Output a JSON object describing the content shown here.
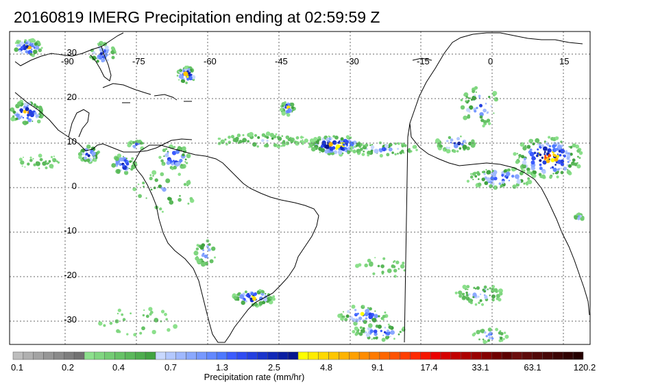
{
  "title": "20160819 IMERG Precipitation ending at 02:59:59 Z",
  "map": {
    "lon_labels": [
      "-90",
      "-75",
      "-60",
      "-45",
      "-30",
      "-15",
      "0",
      "15"
    ],
    "lat_labels": [
      "30",
      "20",
      "10",
      "0",
      "-10",
      "-20",
      "-30"
    ],
    "land_color": "#ffffff",
    "coastline_color": "#000000",
    "grid_style": "dotted"
  },
  "colorbar": {
    "tick_labels": [
      "0.1",
      "0.2",
      "0.4",
      "0.7",
      "1.3",
      "2.5",
      "4.8",
      "9.1",
      "17.4",
      "33.1",
      "63.1",
      "120.2"
    ],
    "label": "Precipitation rate (mm/hr)",
    "colors": [
      "#bdbdbd",
      "#b0b0b0",
      "#a3a3a3",
      "#969696",
      "#8a8a8a",
      "#7d7d7d",
      "#717171",
      "#8ce08c",
      "#80d680",
      "#73cc73",
      "#66c266",
      "#5ab85a",
      "#4dad4d",
      "#41a341",
      "#c8d8ff",
      "#b3c8ff",
      "#9fb8ff",
      "#8aa8ff",
      "#7698ff",
      "#6288ff",
      "#4d78ff",
      "#3c5cff",
      "#2f4cf2",
      "#2440e0",
      "#1a34cc",
      "#1028b8",
      "#0a1ea3",
      "#06168f",
      "#ffff00",
      "#ffec00",
      "#ffd900",
      "#ffc600",
      "#ffb300",
      "#ffa000",
      "#ff8c00",
      "#ff7a00",
      "#ff6600",
      "#ff5200",
      "#ff3e00",
      "#ff2a00",
      "#f51600",
      "#eb0000",
      "#d60000",
      "#c20000",
      "#ad0000",
      "#990000",
      "#850000",
      "#700000",
      "#5c0000",
      "#6b0d0d",
      "#5e0a0a",
      "#520808",
      "#470606",
      "#3b0404",
      "#300202",
      "#250000"
    ]
  }
}
